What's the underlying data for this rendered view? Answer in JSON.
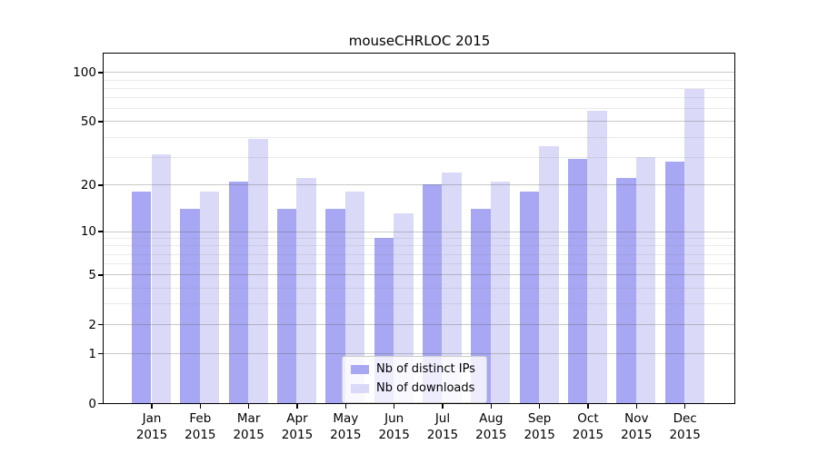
{
  "chart_data": {
    "type": "bar",
    "title": "mouseCHRLOC 2015",
    "categories": [
      "Jan",
      "Feb",
      "Mar",
      "Apr",
      "May",
      "Jun",
      "Jul",
      "Aug",
      "Sep",
      "Oct",
      "Nov",
      "Dec"
    ],
    "category_year": "2015",
    "series": [
      {
        "name": "Nb of distinct IPs",
        "color": "#a7a7f3",
        "values": [
          18,
          14,
          21,
          14,
          14,
          9,
          20,
          14,
          18,
          29,
          22,
          28
        ]
      },
      {
        "name": "Nb of downloads",
        "color": "#dadaf8",
        "values": [
          31,
          18,
          39,
          22,
          18,
          13,
          24,
          21,
          35,
          58,
          30,
          79
        ]
      }
    ],
    "y_scale": "log10(1+x)",
    "y_ticks": [
      0,
      1,
      2,
      5,
      10,
      20,
      50,
      100
    ],
    "y_minor_ticks": [
      3,
      4,
      6,
      7,
      8,
      9,
      30,
      40,
      60,
      70,
      80,
      90
    ],
    "ylim": [
      0,
      128
    ],
    "grid": true,
    "legend_position": "lower center",
    "background_color": "#ffffff",
    "axis_color": "#000000"
  }
}
